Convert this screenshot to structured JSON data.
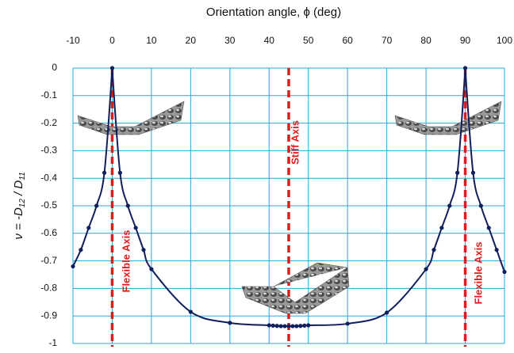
{
  "chart_data": {
    "type": "line",
    "title": "Orientation angle, ϕ (deg)",
    "ylabel": [
      "ν = -D",
      "12",
      " / D",
      "11"
    ],
    "x": [
      -10,
      -8,
      -6,
      -4,
      -2,
      0,
      2,
      4,
      6,
      8,
      10,
      20,
      30,
      40,
      41,
      42,
      43,
      44,
      45,
      46,
      47,
      48,
      49,
      50,
      60,
      70,
      80,
      82,
      84,
      86,
      88,
      90,
      92,
      94,
      96,
      98,
      100
    ],
    "series": [
      {
        "color": "#0f1f5c",
        "values": [
          -0.72,
          -0.66,
          -0.58,
          -0.5,
          -0.38,
          0,
          -0.38,
          -0.5,
          -0.58,
          -0.66,
          -0.73,
          -0.885,
          -0.925,
          -0.934,
          -0.935,
          -0.936,
          -0.937,
          -0.937,
          -0.937,
          -0.937,
          -0.937,
          -0.936,
          -0.935,
          -0.934,
          -0.928,
          -0.888,
          -0.73,
          -0.66,
          -0.58,
          -0.5,
          -0.38,
          0,
          -0.38,
          -0.5,
          -0.58,
          -0.66,
          -0.74
        ]
      }
    ],
    "xlim": [
      -10,
      100
    ],
    "ylim": [
      -1,
      0
    ],
    "xticks": [
      -10,
      0,
      10,
      20,
      30,
      40,
      50,
      60,
      70,
      80,
      90,
      100
    ],
    "yticks": [
      0,
      -0.1,
      -0.2,
      -0.3,
      -0.4,
      -0.5,
      -0.6,
      -0.7,
      -0.8,
      -0.9,
      -1
    ],
    "grid": true,
    "grid_color": "#22a7e0",
    "reference_lines": [
      {
        "x": 0,
        "label": "Flexible Axis"
      },
      {
        "x": 45,
        "label": "Stiff Axis"
      },
      {
        "x": 90,
        "label": "Flexible Axis"
      }
    ],
    "reference_color": "#e01b1b"
  }
}
